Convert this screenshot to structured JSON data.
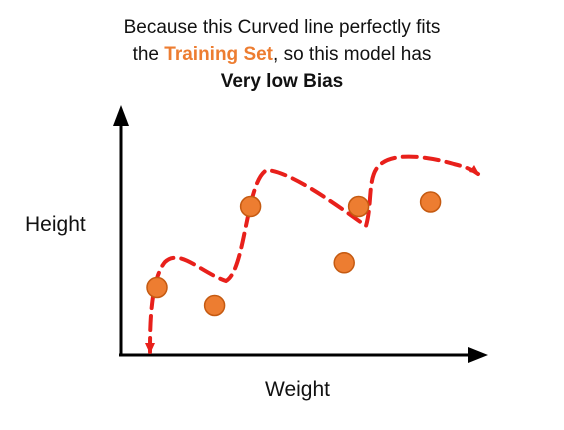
{
  "caption": {
    "line1": "Because this Curved line perfectly fits",
    "line2_pre": "the ",
    "line2_highlight": "Training Set",
    "line2_post": ", so this model has",
    "line3": "Very low Bias"
  },
  "axes": {
    "x_label": "Weight",
    "y_label": "Height"
  },
  "colors": {
    "point_fill": "#ED7D31",
    "point_stroke": "#C55A11",
    "curve": "#E8201B",
    "axis": "#000000",
    "highlight": "#ED7D31"
  },
  "chart_data": {
    "type": "scatter",
    "x_label": "Weight",
    "y_label": "Height",
    "points": [
      {
        "x": 1,
        "y": 3.0
      },
      {
        "x": 2.6,
        "y": 2.2
      },
      {
        "x": 3.6,
        "y": 6.6
      },
      {
        "x": 6.2,
        "y": 4.1
      },
      {
        "x": 6.6,
        "y": 6.6
      },
      {
        "x": 8.6,
        "y": 6.8
      }
    ],
    "fit_line": "dashed curve passing through every training point"
  }
}
